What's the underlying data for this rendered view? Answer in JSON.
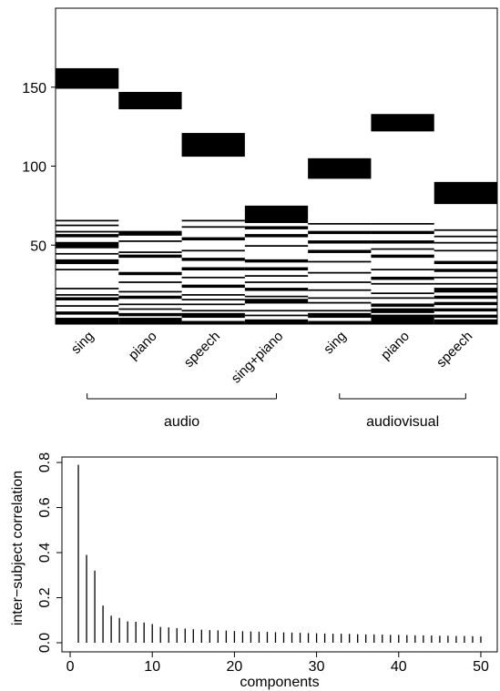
{
  "chart_data": [
    {
      "type": "heatmap",
      "yticks": [
        50,
        100,
        150
      ],
      "ylim": [
        0,
        200
      ],
      "columns": [
        "sing",
        "piano",
        "speech",
        "sing+piano",
        "sing",
        "piano",
        "speech"
      ],
      "groups": [
        {
          "label": "audio",
          "from": 0,
          "to": 3
        },
        {
          "label": "audiovisual",
          "from": 4,
          "to": 6
        }
      ],
      "blocks": [
        {
          "column": 0,
          "from": 149,
          "to": 162
        },
        {
          "column": 1,
          "from": 136,
          "to": 147
        },
        {
          "column": 2,
          "from": 106,
          "to": 121
        },
        {
          "column": 3,
          "from": 64,
          "to": 75
        },
        {
          "column": 4,
          "from": 92,
          "to": 105
        },
        {
          "column": 5,
          "from": 122,
          "to": 133
        },
        {
          "column": 6,
          "from": 76,
          "to": 90
        }
      ],
      "bands": [
        {
          "column": 0,
          "lines": [
            [
              65,
              66
            ],
            [
              62,
              63
            ],
            [
              58,
              59
            ],
            [
              55,
              57
            ],
            [
              48,
              52
            ],
            [
              44,
              45
            ],
            [
              38,
              41
            ],
            [
              34,
              35
            ],
            [
              22,
              23
            ],
            [
              18,
              19
            ],
            [
              15,
              17
            ],
            [
              11,
              12
            ],
            [
              6,
              8
            ],
            [
              0,
              4
            ]
          ]
        },
        {
          "column": 1,
          "lines": [
            [
              56,
              59
            ],
            [
              52,
              53
            ],
            [
              45,
              46
            ],
            [
              42,
              44
            ],
            [
              31,
              33
            ],
            [
              26,
              27
            ],
            [
              20,
              21
            ],
            [
              16,
              18
            ],
            [
              12,
              13
            ],
            [
              9,
              10
            ],
            [
              5,
              7
            ],
            [
              0,
              4
            ]
          ]
        },
        {
          "column": 2,
          "lines": [
            [
              65,
              66
            ],
            [
              61,
              62
            ],
            [
              53,
              55
            ],
            [
              46,
              47
            ],
            [
              40,
              42
            ],
            [
              34,
              36
            ],
            [
              29,
              30
            ],
            [
              23,
              25
            ],
            [
              18,
              19
            ],
            [
              15,
              16
            ],
            [
              12,
              13
            ],
            [
              8,
              9
            ],
            [
              4,
              7
            ],
            [
              0,
              2
            ]
          ]
        },
        {
          "column": 3,
          "lines": [
            [
              60,
              62
            ],
            [
              55,
              57
            ],
            [
              49,
              50
            ],
            [
              39,
              41
            ],
            [
              34,
              36
            ],
            [
              30,
              31
            ],
            [
              26,
              27
            ],
            [
              21,
              23
            ],
            [
              17,
              18
            ],
            [
              13,
              16
            ],
            [
              8,
              9
            ],
            [
              5,
              6
            ],
            [
              0,
              3
            ]
          ]
        },
        {
          "column": 4,
          "lines": [
            [
              63,
              64
            ],
            [
              57,
              59
            ],
            [
              51,
              53
            ],
            [
              45,
              47
            ],
            [
              39,
              40
            ],
            [
              32,
              33
            ],
            [
              26,
              27
            ],
            [
              21,
              22
            ],
            [
              16,
              17
            ],
            [
              13,
              14
            ],
            [
              8,
              9
            ],
            [
              4,
              7
            ],
            [
              0,
              2
            ]
          ]
        },
        {
          "column": 5,
          "lines": [
            [
              63,
              64
            ],
            [
              57,
              59
            ],
            [
              51,
              53
            ],
            [
              47,
              48
            ],
            [
              42,
              44
            ],
            [
              34,
              35
            ],
            [
              28,
              30
            ],
            [
              25,
              26
            ],
            [
              19,
              20
            ],
            [
              16,
              17
            ],
            [
              11,
              13
            ],
            [
              7,
              10
            ],
            [
              0,
              6
            ]
          ]
        },
        {
          "column": 6,
          "lines": [
            [
              59,
              60
            ],
            [
              55,
              56
            ],
            [
              51,
              52
            ],
            [
              46,
              47
            ],
            [
              38,
              40
            ],
            [
              33,
              35
            ],
            [
              29,
              30
            ],
            [
              25,
              26
            ],
            [
              20,
              23
            ],
            [
              16,
              18
            ],
            [
              12,
              14
            ],
            [
              8,
              10
            ],
            [
              4,
              6
            ],
            [
              0,
              3
            ]
          ]
        }
      ]
    },
    {
      "type": "bar",
      "xlabel": "components",
      "ylabel": "inter−subject correlation",
      "xticks": [
        0,
        10,
        20,
        30,
        40,
        50
      ],
      "yticks": [
        "0.0",
        "0.2",
        "0.4",
        "0.6",
        "0.8"
      ],
      "xlim": [
        -1,
        52
      ],
      "ylim": [
        0,
        0.8
      ],
      "x": [
        1,
        2,
        3,
        4,
        5,
        6,
        7,
        8,
        9,
        10,
        11,
        12,
        13,
        14,
        15,
        16,
        17,
        18,
        19,
        20,
        21,
        22,
        23,
        24,
        25,
        26,
        27,
        28,
        29,
        30,
        31,
        32,
        33,
        34,
        35,
        36,
        37,
        38,
        39,
        40,
        41,
        42,
        43,
        44,
        45,
        46,
        47,
        48,
        49,
        50
      ],
      "values": [
        0.79,
        0.39,
        0.32,
        0.165,
        0.12,
        0.11,
        0.095,
        0.093,
        0.09,
        0.083,
        0.07,
        0.068,
        0.065,
        0.063,
        0.06,
        0.058,
        0.056,
        0.055,
        0.054,
        0.052,
        0.051,
        0.05,
        0.049,
        0.048,
        0.047,
        0.046,
        0.045,
        0.044,
        0.043,
        0.042,
        0.041,
        0.04,
        0.04,
        0.039,
        0.038,
        0.037,
        0.037,
        0.036,
        0.035,
        0.035,
        0.034,
        0.033,
        0.033,
        0.032,
        0.031,
        0.031,
        0.03,
        0.03,
        0.029,
        0.028
      ]
    }
  ]
}
